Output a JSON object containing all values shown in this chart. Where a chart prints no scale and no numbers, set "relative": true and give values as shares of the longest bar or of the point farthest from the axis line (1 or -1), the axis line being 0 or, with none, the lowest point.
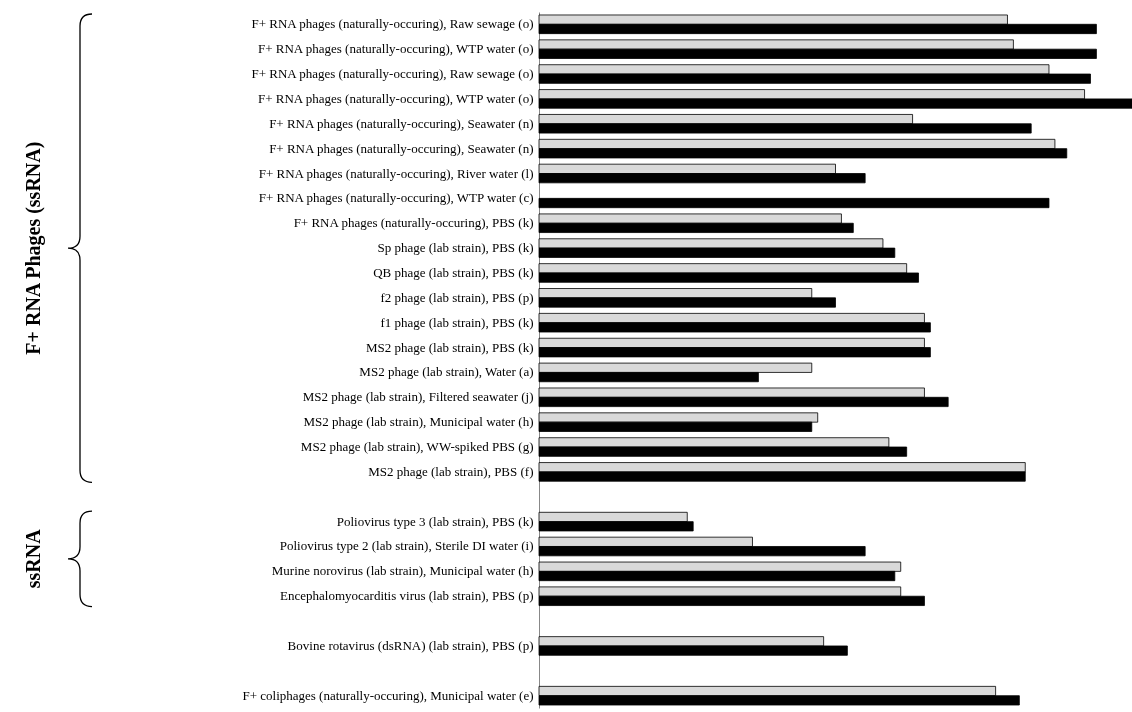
{
  "chart_data": {
    "type": "bar",
    "orientation": "horizontal",
    "relative": true,
    "categories": [
      "F+ RNA phages (naturally-occuring), Raw sewage (o)",
      "F+ RNA phages (naturally-occuring), WTP water (o)",
      "F+ RNA phages (naturally-occuring), Raw sewage (o)",
      "F+ RNA phages (naturally-occuring), WTP water (o)",
      "F+ RNA phages (naturally-occuring), Seawater (n)",
      "F+ RNA phages (naturally-occuring), Seawater (n)",
      "F+ RNA phages (naturally-occuring), River water (l)",
      "F+ RNA phages (naturally-occuring), WTP water (c)",
      "F+ RNA phages (naturally-occuring), PBS (k)",
      "Sp phage (lab strain), PBS (k)",
      "QB phage (lab strain), PBS (k)",
      "f2 phage (lab strain), PBS (p)",
      "f1 phage (lab strain), PBS (k)",
      "MS2 phage (lab strain), PBS (k)",
      "MS2 phage (lab strain), Water (a)",
      "MS2 phage (lab strain), Filtered seawater (j)",
      "MS2 phage (lab strain), Municipal water (h)",
      "MS2 phage (lab strain), WW-spiked PBS (g)",
      "MS2 phage (lab strain), PBS (f)",
      null,
      "Poliovirus type 3 (lab strain), PBS (k)",
      "Poliovirus type 2 (lab strain), Sterile DI water (i)",
      "Murine norovirus (lab strain), Municipal water (h)",
      "Encephalomyocarditis virus (lab strain), PBS (p)",
      null,
      "Bovine rotavirus (dsRNA) (lab strain), PBS (p)",
      null,
      "F+ coliphages (naturally-occuring), Municipal water (e)"
    ],
    "series": [
      {
        "color": "#d9d9d9",
        "values": [
          0.79,
          0.8,
          0.86,
          0.92,
          0.63,
          0.87,
          0.5,
          null,
          0.51,
          0.58,
          0.62,
          0.46,
          0.65,
          0.65,
          0.46,
          0.65,
          0.47,
          0.59,
          0.82,
          null,
          0.25,
          0.36,
          0.61,
          0.61,
          null,
          0.48,
          null,
          0.77
        ]
      },
      {
        "color": "#000000",
        "values": [
          0.94,
          0.94,
          0.93,
          1.0,
          0.83,
          0.89,
          0.55,
          0.86,
          0.53,
          0.6,
          0.64,
          0.5,
          0.66,
          0.66,
          0.37,
          0.69,
          0.46,
          0.62,
          0.82,
          null,
          0.26,
          0.55,
          0.6,
          0.65,
          null,
          0.52,
          null,
          0.81
        ]
      }
    ],
    "annotations": [
      "F+ RNA Phages (ssRNA)",
      "ssRNA"
    ]
  }
}
